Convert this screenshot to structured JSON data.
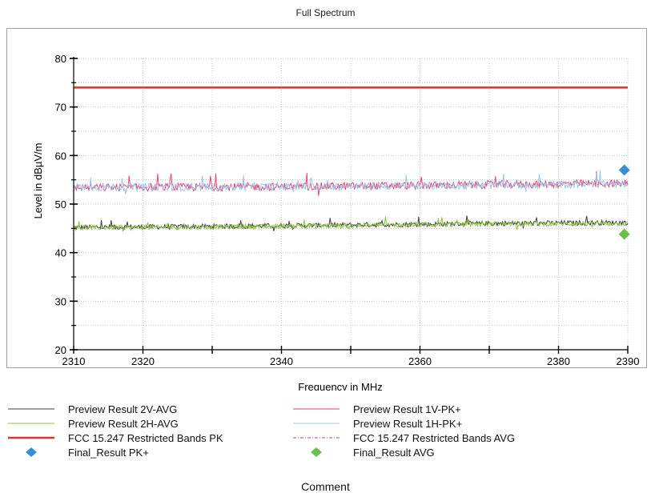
{
  "chart_data": {
    "type": "line",
    "title": "Full Spectrum",
    "xlabel": "Frequency in MHz",
    "ylabel": "Level in dBµV/m",
    "xlim": [
      2310,
      2390
    ],
    "ylim": [
      20,
      80
    ],
    "x_ticks": [
      2310,
      2320,
      2340,
      2360,
      2380,
      2390
    ],
    "x_minor_ticks": [
      2330,
      2350,
      2370
    ],
    "y_ticks": [
      20,
      30,
      40,
      50,
      60,
      70,
      80
    ],
    "grid": true,
    "legend_position": "bottom",
    "series": [
      {
        "name": "Preview Result 2V-AVG",
        "style": "noisy-line",
        "color": "#404040",
        "x": [
          2310,
          2330,
          2350,
          2370,
          2390
        ],
        "values": [
          45.2,
          45.4,
          45.7,
          46.0,
          46.2
        ],
        "noise": 0.5
      },
      {
        "name": "Preview Result 2H-AVG",
        "style": "noisy-line",
        "color": "#8cc63f",
        "x": [
          2310,
          2330,
          2350,
          2370,
          2390
        ],
        "values": [
          45.1,
          45.3,
          45.6,
          45.9,
          46.0
        ],
        "noise": 0.5
      },
      {
        "name": "Preview Result 1V-PK+",
        "style": "noisy-line",
        "color": "#e8457a",
        "x": [
          2310,
          2330,
          2350,
          2370,
          2390
        ],
        "values": [
          53.4,
          53.5,
          53.7,
          54.0,
          54.3
        ],
        "noise": 0.8
      },
      {
        "name": "Preview Result 1H-PK+",
        "style": "noisy-line",
        "color": "#9ec5e8",
        "x": [
          2310,
          2330,
          2350,
          2370,
          2390
        ],
        "values": [
          53.5,
          53.5,
          53.6,
          53.9,
          54.1
        ],
        "noise": 0.8
      },
      {
        "name": "FCC 15.247 Restricted Bands PK",
        "style": "solid-line",
        "color": "#e03030",
        "x": [
          2310,
          2390
        ],
        "values": [
          74,
          74
        ]
      },
      {
        "name": "FCC 15.247 Restricted Bands AVG",
        "style": "dash-dot-line",
        "color": "#c0408a",
        "x": [],
        "values": []
      },
      {
        "name": "Final_Result PK+",
        "style": "diamond",
        "color": "#3a8fd0",
        "x": [
          2389.5
        ],
        "values": [
          57.0
        ]
      },
      {
        "name": "Final_Result AVG",
        "style": "diamond",
        "color": "#6cc04a",
        "x": [
          2389.5
        ],
        "values": [
          43.8
        ]
      }
    ]
  },
  "comment_label": "Comment",
  "colors": {
    "grid": "#c8c8c8",
    "axis": "#000000",
    "frame": "#a0a0a0"
  }
}
